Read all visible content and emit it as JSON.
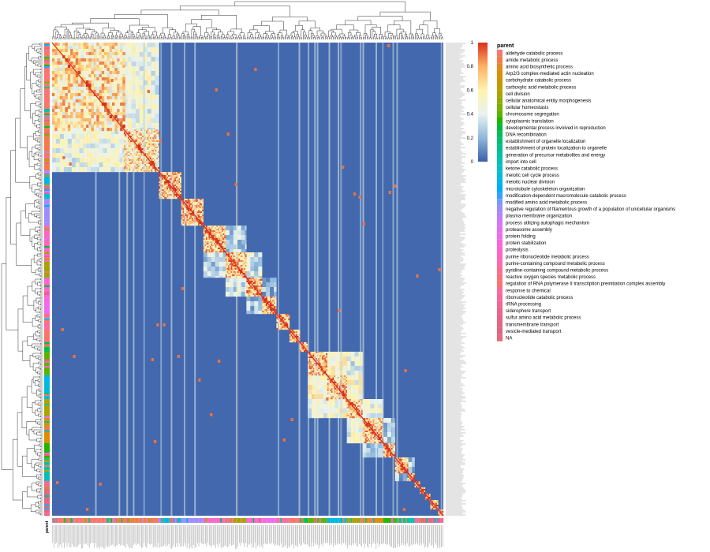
{
  "chart_data": {
    "type": "heatmap",
    "title": "",
    "xlabel": "",
    "ylabel": "",
    "annotation_label": "parent",
    "colorbar": {
      "range": [
        0,
        1
      ],
      "ticks": [
        "0",
        "0.2",
        "0.4",
        "0.6",
        "0.8",
        "1"
      ],
      "colors": [
        "#3a5fa8",
        "#8fb8dc",
        "#e8f3f0",
        "#fff3ae",
        "#fdb264",
        "#d7301f"
      ]
    },
    "n_terms": 300,
    "cluster_sizes": [
      55,
      27,
      17,
      17,
      17,
      16,
      12,
      11,
      10,
      8,
      6,
      15,
      15,
      12,
      16,
      9,
      10,
      5,
      4,
      4,
      4,
      6,
      4
    ],
    "cluster_parents": [
      "aldehyde catabolic process",
      "amide metabolic process",
      "meiotic nuclear division",
      "negative regulation of filamentous growth of a population of unicellular organisms",
      "purine ribonucleotide metabolic process",
      "cellular anatomical entity morphogenesis",
      "proteolysis",
      "protein folding",
      "response to chemical",
      "regulation of RNA polymerase II transcription preinitiation complex assembly",
      "DNA recombination",
      "chromosome segregation",
      "meiotic cell cycle process",
      "cell division",
      "Arp2/3 complex-mediated actin nucleation",
      "cytoplasmic translation",
      "generation of precursor metabolites and energy",
      "import into cell",
      "ribonucleotide catabolic process",
      "sulfur amino acid metabolic process",
      "transmembrane transport",
      "vesicle-mediated transport",
      "NA"
    ],
    "legend": [
      {
        "label": "aldehyde catabolic process",
        "color": "#f8766d"
      },
      {
        "label": "amide metabolic process",
        "color": "#f17c4a"
      },
      {
        "label": "amino acid biosynthetic process",
        "color": "#e88526"
      },
      {
        "label": "Arp2/3 complex-mediated actin nucleation",
        "color": "#dc8d00"
      },
      {
        "label": "carbohydrate catabolic process",
        "color": "#ce9500"
      },
      {
        "label": "carboxylic acid metabolic process",
        "color": "#be9c00"
      },
      {
        "label": "cell division",
        "color": "#aca300"
      },
      {
        "label": "cellular anatomical entity morphogenesis",
        "color": "#97a900"
      },
      {
        "label": "cellular homeostasis",
        "color": "#7cae00"
      },
      {
        "label": "chromosome segregation",
        "color": "#5bb300"
      },
      {
        "label": "cytoplasmic translation",
        "color": "#1eb700"
      },
      {
        "label": "developmental process involved in reproduction",
        "color": "#00ba38"
      },
      {
        "label": "DNA recombination",
        "color": "#00bc59"
      },
      {
        "label": "establishment of organelle localization",
        "color": "#00be73"
      },
      {
        "label": "establishment of protein localization to organelle",
        "color": "#00c08b"
      },
      {
        "label": "generation of precursor metabolites and energy",
        "color": "#00c1a2"
      },
      {
        "label": "import into cell",
        "color": "#00c0b8"
      },
      {
        "label": "ketone catabolic process",
        "color": "#00becc"
      },
      {
        "label": "meiotic cell cycle process",
        "color": "#00bade"
      },
      {
        "label": "meiotic nuclear division",
        "color": "#00b4ef"
      },
      {
        "label": "microtubule cytoskeleton organization",
        "color": "#00acfc"
      },
      {
        "label": "modification-dependent macromolecule catabolic process",
        "color": "#35a2ff"
      },
      {
        "label": "modified amino acid metabolic process",
        "color": "#7997ff"
      },
      {
        "label": "negative regulation of filamentous growth of a population of unicellular organisms",
        "color": "#9f8cff"
      },
      {
        "label": "plasma membrane organization",
        "color": "#bb81ff"
      },
      {
        "label": "process utilizing autophagic mechanism",
        "color": "#d277fd"
      },
      {
        "label": "proteasome assembly",
        "color": "#e46ff6"
      },
      {
        "label": "protein folding",
        "color": "#f169ec"
      },
      {
        "label": "protein stabilization",
        "color": "#fa65df"
      },
      {
        "label": "proteolysis",
        "color": "#ff64d0"
      },
      {
        "label": "purine ribonucleotide metabolic process",
        "color": "#ff66bf"
      },
      {
        "label": "purine-containing compound metabolic process",
        "color": "#ff6aac"
      },
      {
        "label": "pyridine-containing compound metabolic process",
        "color": "#ff6c91"
      },
      {
        "label": "reactive oxygen species metabolic process",
        "color": "#ff6f7e"
      },
      {
        "label": "regulation of RNA polymerase II transcription preinitiation complex assembly",
        "color": "#f8766d"
      },
      {
        "label": "response to chemical",
        "color": "#fc6b9e"
      },
      {
        "label": "ribonucleotide catabolic process",
        "color": "#f7689a"
      },
      {
        "label": "rRNA processing",
        "color": "#f06694"
      },
      {
        "label": "siderophore transport",
        "color": "#ea648c"
      },
      {
        "label": "sulfur amino acid metabolic process",
        "color": "#e66488"
      },
      {
        "label": "transmembrane transport",
        "color": "#e26584"
      },
      {
        "label": "vesicle-mediated transport",
        "color": "#de6680"
      },
      {
        "label": "NA",
        "color": "#e8677d"
      }
    ]
  }
}
